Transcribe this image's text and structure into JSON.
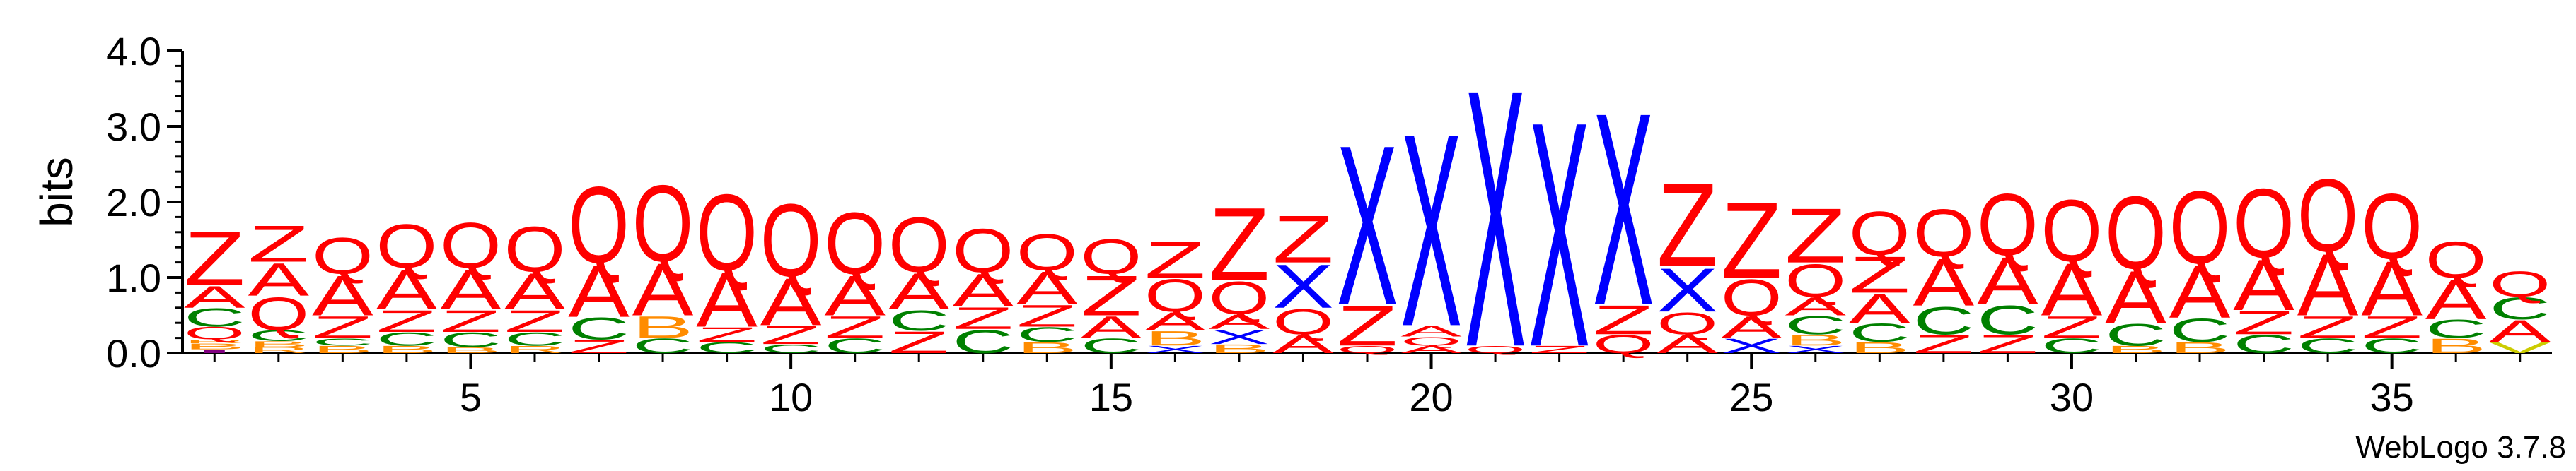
{
  "chart_data": {
    "type": "sequence-logo",
    "ylabel": "bits",
    "ylim": [
      0,
      4.0
    ],
    "y_ticks": [
      "0.0",
      "1.0",
      "2.0",
      "3.0",
      "4.0"
    ],
    "x_ticks": [
      5,
      10,
      15,
      20,
      25,
      30,
      35
    ],
    "positions": 37,
    "colors": {
      "Z": "#ff0000",
      "Q": "#ff0000",
      "A": "#ff0000",
      "C": "#008000",
      "X": "#0000ff",
      "B": "#ff8c00",
      "R": "#ff8c00",
      "V": "#cccc00",
      "I": "#800080"
    },
    "columns": [
      [
        [
          "I",
          0.05
        ],
        [
          "B",
          0.08
        ],
        [
          "R",
          0.05
        ],
        [
          "Q",
          0.17
        ],
        [
          "C",
          0.25
        ],
        [
          "A",
          0.3
        ],
        [
          "Z",
          0.75
        ]
      ],
      [
        [
          "R",
          0.08
        ],
        [
          "B",
          0.08
        ],
        [
          "C",
          0.15
        ],
        [
          "Q",
          0.45
        ],
        [
          "A",
          0.45
        ],
        [
          "Z",
          0.5
        ]
      ],
      [
        [
          "B",
          0.1
        ],
        [
          "C",
          0.1
        ],
        [
          "Z",
          0.3
        ],
        [
          "A",
          0.55
        ],
        [
          "Q",
          0.5
        ]
      ],
      [
        [
          "B",
          0.1
        ],
        [
          "C",
          0.18
        ],
        [
          "Z",
          0.3
        ],
        [
          "A",
          0.55
        ],
        [
          "Q",
          0.6
        ]
      ],
      [
        [
          "B",
          0.08
        ],
        [
          "C",
          0.2
        ],
        [
          "Z",
          0.3
        ],
        [
          "A",
          0.55
        ],
        [
          "Q",
          0.62
        ]
      ],
      [
        [
          "R",
          0.1
        ],
        [
          "C",
          0.18
        ],
        [
          "Z",
          0.3
        ],
        [
          "A",
          0.5
        ],
        [
          "Q",
          0.62
        ]
      ],
      [
        [
          "Z",
          0.18
        ],
        [
          "C",
          0.3
        ],
        [
          "A",
          0.72
        ],
        [
          "Q",
          1.05
        ]
      ],
      [
        [
          "C",
          0.2
        ],
        [
          "B",
          0.3
        ],
        [
          "A",
          0.72
        ],
        [
          "Q",
          1.05
        ]
      ],
      [
        [
          "C",
          0.15
        ],
        [
          "Z",
          0.2
        ],
        [
          "A",
          0.75
        ],
        [
          "Q",
          1.05
        ]
      ],
      [
        [
          "C",
          0.12
        ],
        [
          "Z",
          0.25
        ],
        [
          "A",
          0.65
        ],
        [
          "Q",
          1.0
        ]
      ],
      [
        [
          "C",
          0.2
        ],
        [
          "Z",
          0.3
        ],
        [
          "A",
          0.55
        ],
        [
          "Q",
          0.85
        ]
      ],
      [
        [
          "Z",
          0.3
        ],
        [
          "C",
          0.28
        ],
        [
          "A",
          0.5
        ],
        [
          "Q",
          0.75
        ]
      ],
      [
        [
          "C",
          0.32
        ],
        [
          "Z",
          0.3
        ],
        [
          "A",
          0.45
        ],
        [
          "Q",
          0.6
        ]
      ],
      [
        [
          "B",
          0.15
        ],
        [
          "C",
          0.2
        ],
        [
          "Z",
          0.3
        ],
        [
          "A",
          0.45
        ],
        [
          "Q",
          0.5
        ]
      ],
      [
        [
          "C",
          0.2
        ],
        [
          "A",
          0.3
        ],
        [
          "Z",
          0.55
        ],
        [
          "Q",
          0.48
        ]
      ],
      [
        [
          "X",
          0.1
        ],
        [
          "B",
          0.2
        ],
        [
          "A",
          0.25
        ],
        [
          "Q",
          0.45
        ],
        [
          "Z",
          0.5
        ]
      ],
      [
        [
          "B",
          0.12
        ],
        [
          "X",
          0.2
        ],
        [
          "A",
          0.2
        ],
        [
          "Q",
          0.45
        ],
        [
          "Z",
          1.0
        ]
      ],
      [
        [
          "A",
          0.25
        ],
        [
          "Q",
          0.35
        ],
        [
          "X",
          0.6
        ],
        [
          "Z",
          0.65
        ]
      ],
      [
        [
          "Q",
          0.1
        ],
        [
          "Z",
          0.55
        ],
        [
          "X",
          2.2
        ]
      ],
      [
        [
          "A",
          0.1
        ],
        [
          "Q",
          0.12
        ],
        [
          "A",
          0.15
        ],
        [
          "X",
          2.65
        ]
      ],
      [
        [
          "Q",
          0.1
        ],
        [
          "X",
          3.55
        ]
      ],
      [
        [
          "Z",
          0.1
        ],
        [
          "X",
          3.1
        ]
      ],
      [
        [
          "Q",
          0.25
        ],
        [
          "Z",
          0.4
        ],
        [
          "X",
          2.65
        ]
      ],
      [
        [
          "A",
          0.25
        ],
        [
          "Q",
          0.3
        ],
        [
          "X",
          0.6
        ],
        [
          "Z",
          1.15
        ]
      ],
      [
        [
          "X",
          0.2
        ],
        [
          "A",
          0.3
        ],
        [
          "Q",
          0.5
        ],
        [
          "Z",
          1.05
        ]
      ],
      [
        [
          "X",
          0.1
        ],
        [
          "B",
          0.15
        ],
        [
          "C",
          0.25
        ],
        [
          "A",
          0.25
        ],
        [
          "Q",
          0.45
        ],
        [
          "Z",
          0.75
        ]
      ],
      [
        [
          "B",
          0.15
        ],
        [
          "C",
          0.25
        ],
        [
          "A",
          0.4
        ],
        [
          "Z",
          0.5
        ],
        [
          "Q",
          0.6
        ]
      ],
      [
        [
          "Z",
          0.25
        ],
        [
          "C",
          0.38
        ],
        [
          "A",
          0.65
        ],
        [
          "Q",
          0.65
        ]
      ],
      [
        [
          "Z",
          0.25
        ],
        [
          "C",
          0.4
        ],
        [
          "A",
          0.65
        ],
        [
          "Q",
          0.85
        ]
      ],
      [
        [
          "C",
          0.2
        ],
        [
          "Z",
          0.3
        ],
        [
          "A",
          0.72
        ],
        [
          "Q",
          0.85
        ]
      ],
      [
        [
          "B",
          0.1
        ],
        [
          "C",
          0.3
        ],
        [
          "A",
          0.72
        ],
        [
          "Q",
          1.0
        ]
      ],
      [
        [
          "B",
          0.15
        ],
        [
          "C",
          0.32
        ],
        [
          "A",
          0.72
        ],
        [
          "Q",
          1.0
        ]
      ],
      [
        [
          "C",
          0.25
        ],
        [
          "Z",
          0.32
        ],
        [
          "A",
          0.7
        ],
        [
          "Q",
          0.95
        ]
      ],
      [
        [
          "C",
          0.2
        ],
        [
          "Z",
          0.3
        ],
        [
          "A",
          0.85
        ],
        [
          "Q",
          1.0
        ]
      ],
      [
        [
          "C",
          0.2
        ],
        [
          "Z",
          0.3
        ],
        [
          "A",
          0.75
        ],
        [
          "Q",
          0.9
        ]
      ],
      [
        [
          "B",
          0.2
        ],
        [
          "C",
          0.25
        ],
        [
          "A",
          0.55
        ],
        [
          "Q",
          0.5
        ]
      ],
      [
        [
          "V",
          0.15
        ],
        [
          "A",
          0.3
        ],
        [
          "C",
          0.3
        ],
        [
          "Q",
          0.35
        ]
      ]
    ]
  },
  "footer": "WebLogo 3.7.8"
}
